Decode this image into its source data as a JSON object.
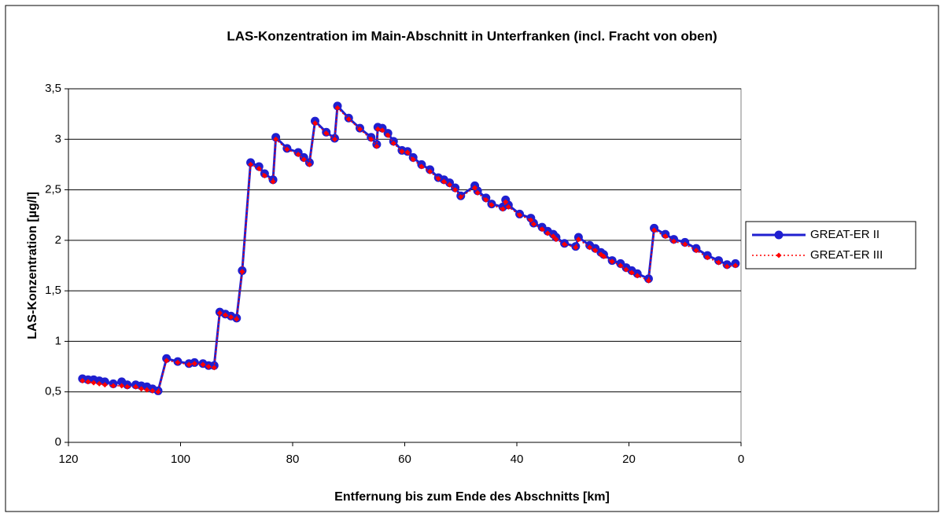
{
  "chart_data": {
    "type": "line",
    "title": "LAS-Konzentration im Main-Abschnitt in Unterfranken (incl. Fracht von oben)",
    "x_label": "Entfernung bis zum Ende des Abschnitts [km]",
    "y_label": "LAS-Konzentration [µg/l]",
    "xlim": [
      120,
      0
    ],
    "xticks": [
      120,
      100,
      80,
      60,
      40,
      20,
      0
    ],
    "ylim": [
      0,
      3.5
    ],
    "yticks": [
      0,
      {
        "value": 0.5,
        "label": "0,5"
      },
      1,
      {
        "value": 1.5,
        "label": "1,5"
      },
      2,
      {
        "value": 2.5,
        "label": "2,5"
      },
      3,
      {
        "value": 3.5,
        "label": "3,5"
      }
    ],
    "grid": true,
    "legend": "right",
    "x": [
      117.5,
      116.5,
      115.5,
      114.5,
      113.5,
      112,
      110.5,
      109.5,
      108,
      107,
      106,
      105,
      104,
      102.5,
      100.5,
      98.5,
      97.5,
      96,
      95,
      94,
      93,
      92,
      91,
      90,
      89,
      87.5,
      86,
      85,
      83.5,
      83,
      81,
      79,
      78,
      77,
      76,
      74,
      72.5,
      72,
      70,
      68,
      66,
      65,
      64.8,
      64,
      63,
      62,
      60.5,
      59.5,
      58.5,
      57,
      55.5,
      54,
      53,
      52,
      51,
      50,
      47.5,
      47,
      45.5,
      44.5,
      42.5,
      42,
      41.5,
      39.5,
      37.5,
      37,
      35.5,
      34.5,
      33.5,
      33,
      31.5,
      29.5,
      29,
      27,
      26,
      25,
      24.5,
      23,
      21.5,
      20.5,
      19.5,
      18.5,
      16.5,
      15.5,
      13.5,
      12,
      10,
      8,
      6,
      4,
      2.5,
      1
    ],
    "series": [
      {
        "name": "GREAT-ER II",
        "color": "#1f1fd0",
        "values": [
          0.63,
          0.62,
          0.62,
          0.61,
          0.6,
          0.58,
          0.6,
          0.57,
          0.57,
          0.56,
          0.55,
          0.53,
          0.51,
          0.83,
          0.8,
          0.78,
          0.79,
          0.78,
          0.76,
          0.76,
          1.29,
          1.27,
          1.25,
          1.23,
          1.7,
          2.77,
          2.73,
          2.66,
          2.6,
          3.02,
          2.91,
          2.87,
          2.82,
          2.77,
          3.18,
          3.07,
          3.01,
          3.33,
          3.21,
          3.11,
          3.02,
          2.95,
          3.12,
          3.11,
          3.06,
          2.98,
          2.89,
          2.88,
          2.82,
          2.75,
          2.7,
          2.62,
          2.6,
          2.57,
          2.52,
          2.44,
          2.54,
          2.49,
          2.42,
          2.36,
          2.33,
          2.4,
          2.35,
          2.26,
          2.22,
          2.17,
          2.13,
          2.09,
          2.06,
          2.03,
          1.97,
          1.94,
          2.03,
          1.95,
          1.92,
          1.88,
          1.86,
          1.8,
          1.77,
          1.73,
          1.7,
          1.67,
          1.62,
          2.12,
          2.06,
          2.01,
          1.98,
          1.92,
          1.85,
          1.8,
          1.76,
          1.77
        ]
      },
      {
        "name": "GREAT-ER III",
        "color": "#ff0000",
        "values": [
          0.61,
          0.6,
          0.59,
          0.58,
          0.57,
          0.56,
          0.56,
          0.55,
          0.55,
          0.53,
          0.52,
          0.51,
          0.5,
          0.81,
          0.79,
          0.77,
          0.78,
          0.77,
          0.75,
          0.74,
          1.28,
          1.26,
          1.24,
          1.22,
          1.69,
          2.75,
          2.71,
          2.64,
          2.58,
          3.0,
          2.9,
          2.85,
          2.8,
          2.75,
          3.16,
          3.06,
          3.0,
          3.31,
          3.2,
          3.1,
          3.0,
          2.93,
          3.1,
          3.09,
          3.04,
          2.96,
          2.88,
          2.87,
          2.8,
          2.73,
          2.68,
          2.61,
          2.58,
          2.55,
          2.5,
          2.43,
          2.52,
          2.47,
          2.4,
          2.35,
          2.31,
          2.38,
          2.33,
          2.25,
          2.2,
          2.16,
          2.11,
          2.07,
          2.04,
          2.01,
          1.96,
          1.93,
          2.01,
          1.93,
          1.9,
          1.86,
          1.84,
          1.79,
          1.75,
          1.71,
          1.68,
          1.65,
          1.6,
          2.1,
          2.04,
          1.99,
          1.96,
          1.9,
          1.83,
          1.78,
          1.74,
          1.75
        ]
      }
    ]
  }
}
